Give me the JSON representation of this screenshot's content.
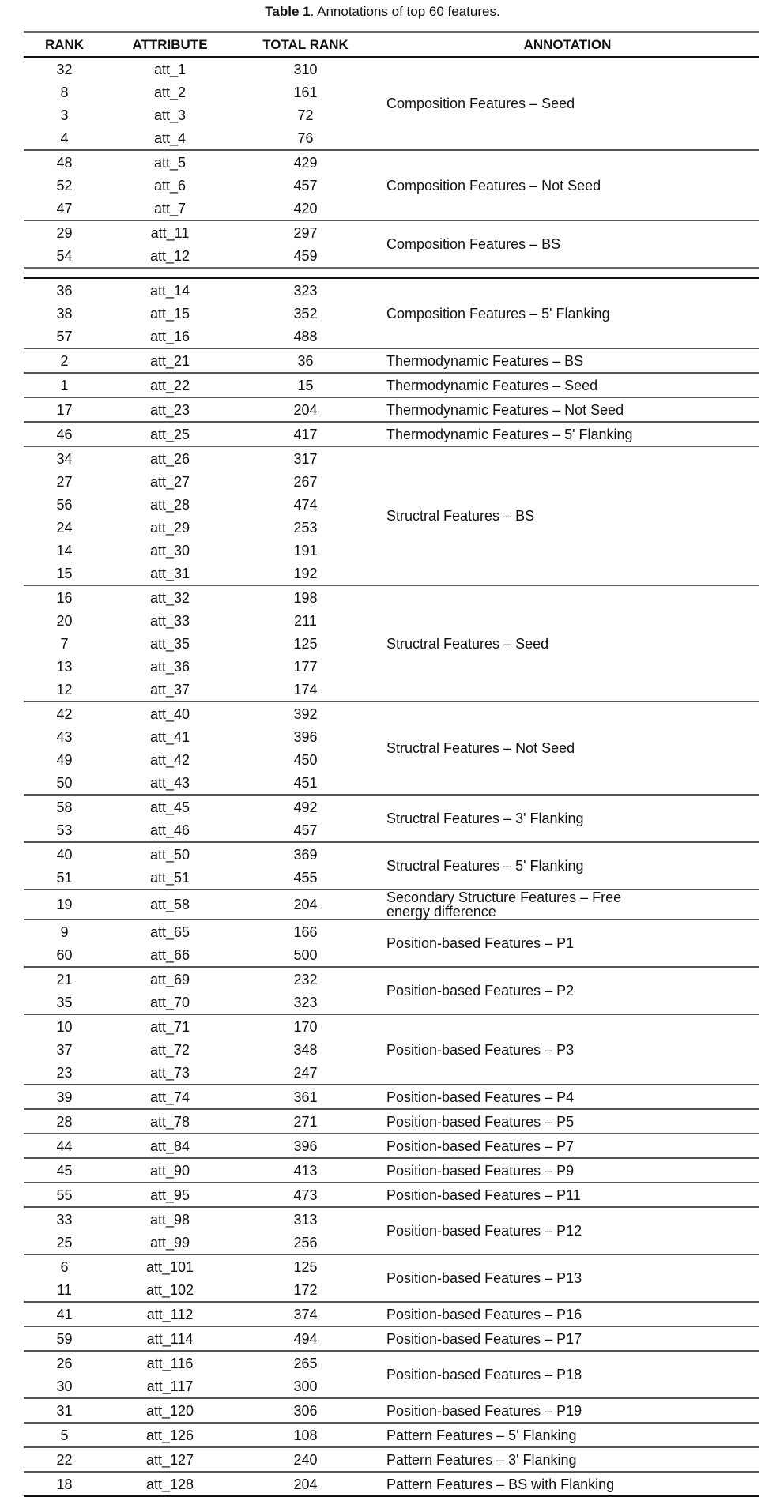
{
  "title": {
    "label": "Table 1",
    "text": ". Annotations of top 60 features."
  },
  "headers": [
    "RANK",
    "ATTRIBUTE",
    "TOTAL RANK",
    "ANNOTATION"
  ],
  "groups": [
    {
      "annotation": "Composition Features – Seed",
      "rows": [
        [
          "32",
          "att_1",
          "310"
        ],
        [
          "8",
          "att_2",
          "161"
        ],
        [
          "3",
          "att_3",
          "72"
        ],
        [
          "4",
          "att_4",
          "76"
        ]
      ]
    },
    {
      "annotation": "Composition Features – Not Seed",
      "rows": [
        [
          "48",
          "att_5",
          "429"
        ],
        [
          "52",
          "att_6",
          "457"
        ],
        [
          "47",
          "att_7",
          "420"
        ]
      ]
    },
    {
      "annotation": "Composition Features – BS",
      "rows": [
        [
          "29",
          "att_11",
          "297"
        ],
        [
          "54",
          "att_12",
          "459"
        ]
      ]
    },
    {
      "annotation": "Composition Features – 5' Flanking",
      "rows": [
        [
          "36",
          "att_14",
          "323"
        ],
        [
          "38",
          "att_15",
          "352"
        ],
        [
          "57",
          "att_16",
          "488"
        ]
      ]
    },
    {
      "annotation": "Thermodynamic Features – BS",
      "rows": [
        [
          "2",
          "att_21",
          "36"
        ]
      ]
    },
    {
      "annotation": "Thermodynamic Features – Seed",
      "rows": [
        [
          "1",
          "att_22",
          "15"
        ]
      ]
    },
    {
      "annotation": "Thermodynamic Features – Not Seed",
      "rows": [
        [
          "17",
          "att_23",
          "204"
        ]
      ]
    },
    {
      "annotation": "Thermodynamic Features – 5' Flanking",
      "rows": [
        [
          "46",
          "att_25",
          "417"
        ]
      ]
    },
    {
      "annotation": "Structral Features – BS",
      "rows": [
        [
          "34",
          "att_26",
          "317"
        ],
        [
          "27",
          "att_27",
          "267"
        ],
        [
          "56",
          "att_28",
          "474"
        ],
        [
          "24",
          "att_29",
          "253"
        ],
        [
          "14",
          "att_30",
          "191"
        ],
        [
          "15",
          "att_31",
          "192"
        ]
      ]
    },
    {
      "annotation": "Structral Features – Seed",
      "rows": [
        [
          "16",
          "att_32",
          "198"
        ],
        [
          "20",
          "att_33",
          "211"
        ],
        [
          "7",
          "att_35",
          "125"
        ],
        [
          "13",
          "att_36",
          "177"
        ],
        [
          "12",
          "att_37",
          "174"
        ]
      ]
    },
    {
      "annotation": "Structral Features – Not Seed",
      "rows": [
        [
          "42",
          "att_40",
          "392"
        ],
        [
          "43",
          "att_41",
          "396"
        ],
        [
          "49",
          "att_42",
          "450"
        ],
        [
          "50",
          "att_43",
          "451"
        ]
      ]
    },
    {
      "annotation": "Structral Features – 3' Flanking",
      "rows": [
        [
          "58",
          "att_45",
          "492"
        ],
        [
          "53",
          "att_46",
          "457"
        ]
      ]
    },
    {
      "annotation": "Structral Features – 5' Flanking",
      "rows": [
        [
          "40",
          "att_50",
          "369"
        ],
        [
          "51",
          "att_51",
          "455"
        ]
      ]
    },
    {
      "annotation": "Secondary Structure Features – Free energy difference",
      "rows": [
        [
          "19",
          "att_58",
          "204"
        ]
      ]
    },
    {
      "annotation": "Position-based Features – P1",
      "rows": [
        [
          "9",
          "att_65",
          "166"
        ],
        [
          "60",
          "att_66",
          "500"
        ]
      ]
    },
    {
      "annotation": "Position-based Features – P2",
      "rows": [
        [
          "21",
          "att_69",
          "232"
        ],
        [
          "35",
          "att_70",
          "323"
        ]
      ]
    },
    {
      "annotation": "Position-based Features – P3",
      "rows": [
        [
          "10",
          "att_71",
          "170"
        ],
        [
          "37",
          "att_72",
          "348"
        ],
        [
          "23",
          "att_73",
          "247"
        ]
      ]
    },
    {
      "annotation": "Position-based Features – P4",
      "rows": [
        [
          "39",
          "att_74",
          "361"
        ]
      ]
    },
    {
      "annotation": "Position-based Features – P5",
      "rows": [
        [
          "28",
          "att_78",
          "271"
        ]
      ]
    },
    {
      "annotation": "Position-based Features – P7",
      "rows": [
        [
          "44",
          "att_84",
          "396"
        ]
      ]
    },
    {
      "annotation": "Position-based Features – P9",
      "rows": [
        [
          "45",
          "att_90",
          "413"
        ]
      ]
    },
    {
      "annotation": "Position-based Features – P11",
      "rows": [
        [
          "55",
          "att_95",
          "473"
        ]
      ]
    },
    {
      "annotation": "Position-based Features – P12",
      "rows": [
        [
          "33",
          "att_98",
          "313"
        ],
        [
          "25",
          "att_99",
          "256"
        ]
      ]
    },
    {
      "annotation": "Position-based Features – P13",
      "rows": [
        [
          "6",
          "att_101",
          "125"
        ],
        [
          "11",
          "att_102",
          "172"
        ]
      ]
    },
    {
      "annotation": "Position-based Features – P16",
      "rows": [
        [
          "41",
          "att_112",
          "374"
        ]
      ]
    },
    {
      "annotation": "Position-based Features – P17",
      "rows": [
        [
          "59",
          "att_114",
          "494"
        ]
      ]
    },
    {
      "annotation": "Position-based Features – P18",
      "rows": [
        [
          "26",
          "att_116",
          "265"
        ],
        [
          "30",
          "att_117",
          "300"
        ]
      ]
    },
    {
      "annotation": "Position-based Features – P19",
      "rows": [
        [
          "31",
          "att_120",
          "306"
        ]
      ]
    },
    {
      "annotation": "Pattern Features – 5' Flanking",
      "rows": [
        [
          "5",
          "att_126",
          "108"
        ]
      ]
    },
    {
      "annotation": "Pattern Features – 3' Flanking",
      "rows": [
        [
          "22",
          "att_127",
          "240"
        ]
      ]
    },
    {
      "annotation": "Pattern Features – BS with Flanking",
      "rows": [
        [
          "18",
          "att_128",
          "204"
        ]
      ]
    }
  ]
}
